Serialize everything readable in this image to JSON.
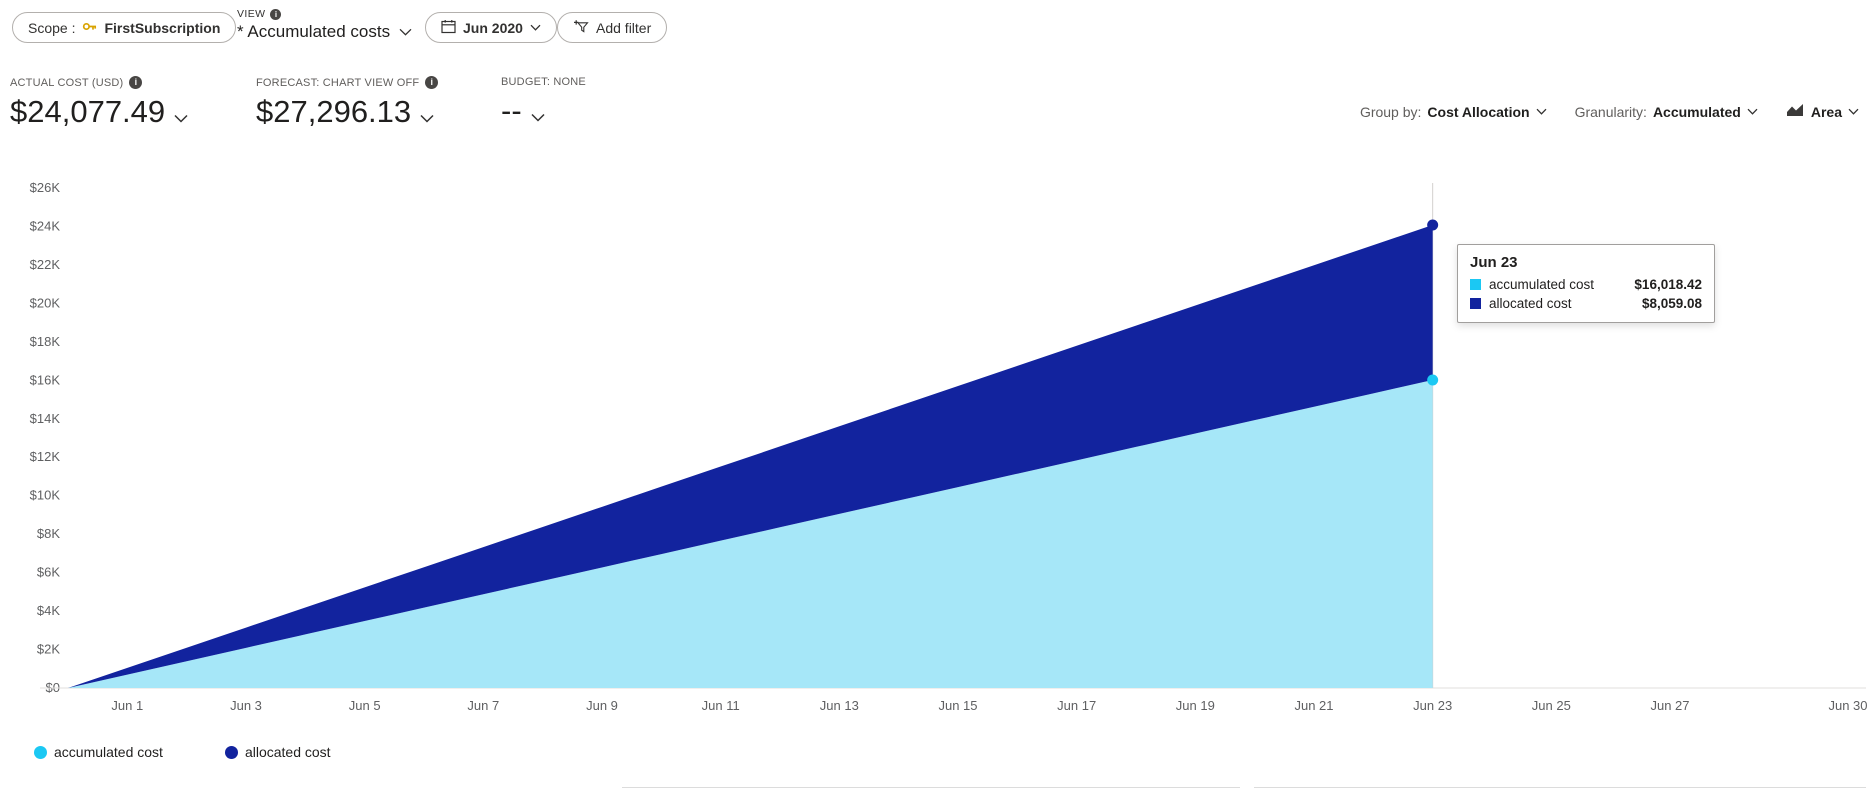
{
  "toolbar": {
    "scope_label": "Scope :",
    "scope_value": "FirstSubscription",
    "view_label": "VIEW",
    "view_value": "* Accumulated costs",
    "date_range": "Jun 2020",
    "add_filter": "Add filter"
  },
  "kpis": {
    "actual": {
      "label": "ACTUAL COST (USD)",
      "value": "$24,077.49"
    },
    "forecast": {
      "label": "FORECAST: CHART VIEW OFF",
      "value": "$27,296.13"
    },
    "budget": {
      "label": "BUDGET: NONE",
      "value": "--"
    }
  },
  "controls": {
    "group_by_label": "Group by:",
    "group_by_value": "Cost Allocation",
    "granularity_label": "Granularity:",
    "granularity_value": "Accumulated",
    "chart_type": "Area"
  },
  "tooltip": {
    "title": "Jun 23",
    "rows": [
      {
        "label": "accumulated cost",
        "value": "$16,018.42",
        "color": "#1bc8f3"
      },
      {
        "label": "allocated cost",
        "value": "$8,059.08",
        "color": "#12239e"
      }
    ]
  },
  "legend": [
    {
      "label": "accumulated cost",
      "color": "#1bc8f3"
    },
    {
      "label": "allocated cost",
      "color": "#12239e"
    }
  ],
  "chart_data": {
    "type": "area",
    "stacked": true,
    "x_unit": "day of June 2020",
    "xlim": [
      0,
      30
    ],
    "ylim": [
      0,
      26000
    ],
    "x_ticks": [
      "Jun 1",
      "Jun 3",
      "Jun 5",
      "Jun 7",
      "Jun 9",
      "Jun 11",
      "Jun 13",
      "Jun 15",
      "Jun 17",
      "Jun 19",
      "Jun 21",
      "Jun 23",
      "Jun 25",
      "Jun 27",
      "Jun 30"
    ],
    "x_tick_days": [
      1,
      3,
      5,
      7,
      9,
      11,
      13,
      15,
      17,
      19,
      21,
      23,
      25,
      27,
      30
    ],
    "y_ticks": [
      "$0",
      "$2K",
      "$4K",
      "$6K",
      "$8K",
      "$10K",
      "$12K",
      "$14K",
      "$16K",
      "$18K",
      "$20K",
      "$22K",
      "$24K",
      "$26K"
    ],
    "x_days": [
      0,
      1,
      2,
      3,
      4,
      5,
      6,
      7,
      8,
      9,
      10,
      11,
      12,
      13,
      14,
      15,
      16,
      17,
      18,
      19,
      20,
      21,
      22,
      23
    ],
    "series": [
      {
        "name": "accumulated cost",
        "fill": "#a6e7f8",
        "marker": "#1bc8f3",
        "values": [
          0,
          696.45,
          1392.91,
          2089.36,
          2785.81,
          3482.27,
          4178.72,
          4875.17,
          5571.62,
          6268.08,
          6964.53,
          7660.98,
          8357.44,
          9053.89,
          9750.34,
          10446.8,
          11143.25,
          11839.7,
          12536.15,
          13232.61,
          13929.06,
          14625.51,
          15321.97,
          16018.42
        ]
      },
      {
        "name": "allocated cost",
        "fill": "#12239e",
        "marker": "#12239e",
        "values": [
          0,
          350.39,
          700.79,
          1051.18,
          1401.58,
          1751.97,
          2102.37,
          2452.76,
          2803.16,
          3153.55,
          3503.95,
          3854.34,
          4204.74,
          4555.13,
          4905.53,
          5255.92,
          5606.32,
          5956.71,
          6307.11,
          6657.5,
          7007.9,
          7358.29,
          7708.69,
          8059.08
        ]
      }
    ],
    "hover_day": 23,
    "hover_label": "Jun 23"
  }
}
